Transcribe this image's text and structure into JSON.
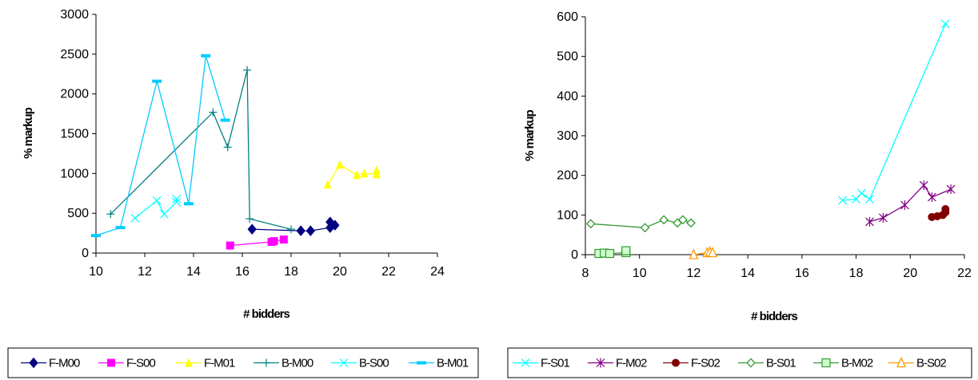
{
  "chart_data": [
    {
      "type": "line",
      "xlabel": "# bidders",
      "ylabel": "% markup",
      "xlim": [
        10,
        24
      ],
      "ylim": [
        0,
        3000
      ],
      "xticks": [
        10,
        12,
        14,
        16,
        18,
        20,
        22,
        24
      ],
      "yticks": [
        0,
        500,
        1000,
        1500,
        2000,
        2500,
        3000
      ],
      "grid": false,
      "legend_position": "bottom",
      "series": [
        {
          "name": "F-M00",
          "color": "#000080",
          "marker": "diamond",
          "points": [
            [
              16.4,
              300
            ],
            [
              18.4,
              280
            ],
            [
              18.8,
              280
            ],
            [
              19.6,
              320
            ],
            [
              19.6,
              390
            ],
            [
              19.8,
              350
            ]
          ]
        },
        {
          "name": "F-S00",
          "color": "#ff00ff",
          "marker": "square",
          "points": [
            [
              15.5,
              95
            ],
            [
              17.2,
              140
            ],
            [
              17.3,
              150
            ],
            [
              17.7,
              170
            ]
          ]
        },
        {
          "name": "F-M01",
          "color": "#ffff00",
          "marker": "triangle",
          "points": [
            [
              19.5,
              860
            ],
            [
              20.0,
              1110
            ],
            [
              20.7,
              980
            ],
            [
              21.0,
              1000
            ],
            [
              21.5,
              990
            ],
            [
              21.5,
              1040
            ]
          ]
        },
        {
          "name": "B-M00",
          "color": "#008080",
          "marker": "plus",
          "points": [
            [
              10.6,
              490
            ],
            [
              14.8,
              1770
            ],
            [
              15.4,
              1330
            ],
            [
              16.2,
              2300
            ],
            [
              16.3,
              430
            ],
            [
              18.0,
              300
            ]
          ]
        },
        {
          "name": "B-S00",
          "color": "#00ffff",
          "marker": "x",
          "points": [
            [
              11.6,
              440
            ],
            [
              12.5,
              660
            ],
            [
              12.8,
              490
            ],
            [
              13.3,
              640
            ],
            [
              13.3,
              680
            ]
          ]
        },
        {
          "name": "B-M01",
          "color": "#00ccff",
          "marker": "dash",
          "points": [
            [
              10.0,
              220
            ],
            [
              11.0,
              320
            ],
            [
              12.5,
              2160
            ],
            [
              13.8,
              620
            ],
            [
              14.5,
              2480
            ],
            [
              15.3,
              1670
            ]
          ]
        }
      ]
    },
    {
      "type": "line",
      "xlabel": "# bidders",
      "ylabel": "% markup",
      "xlim": [
        8,
        22
      ],
      "ylim": [
        0,
        600
      ],
      "xticks": [
        8,
        10,
        12,
        14,
        16,
        18,
        20,
        22
      ],
      "yticks": [
        0,
        100,
        200,
        300,
        400,
        500,
        600
      ],
      "grid": false,
      "legend_position": "bottom",
      "series": [
        {
          "name": "F-S01",
          "color": "#00ffff",
          "marker": "x",
          "points": [
            [
              17.5,
              137
            ],
            [
              18.0,
              140
            ],
            [
              18.2,
              155
            ],
            [
              18.5,
              140
            ],
            [
              21.3,
              582
            ]
          ]
        },
        {
          "name": "F-M02",
          "color": "#800080",
          "marker": "star",
          "points": [
            [
              18.5,
              83
            ],
            [
              19.0,
              93
            ],
            [
              19.8,
              125
            ],
            [
              20.5,
              175
            ],
            [
              20.8,
              145
            ],
            [
              21.5,
              165
            ]
          ]
        },
        {
          "name": "F-S02",
          "color": "#800000",
          "marker": "circle",
          "points": [
            [
              20.8,
              95
            ],
            [
              21.0,
              97
            ],
            [
              21.2,
              100
            ],
            [
              21.3,
              107
            ],
            [
              21.3,
              115
            ]
          ]
        },
        {
          "name": "B-S01",
          "color": "#339933",
          "marker": "diamond-open",
          "points": [
            [
              8.2,
              78
            ],
            [
              10.2,
              68
            ],
            [
              10.9,
              88
            ],
            [
              11.4,
              80
            ],
            [
              11.6,
              88
            ],
            [
              11.9,
              80
            ]
          ]
        },
        {
          "name": "B-M02",
          "color": "#339933",
          "marker": "square-open",
          "points": [
            [
              8.5,
              3
            ],
            [
              8.7,
              4
            ],
            [
              8.9,
              3
            ],
            [
              9.5,
              5
            ],
            [
              9.5,
              10
            ]
          ]
        },
        {
          "name": "B-S02",
          "color": "#ff9900",
          "marker": "triangle-open",
          "points": [
            [
              12.0,
              0
            ],
            [
              12.5,
              5
            ],
            [
              12.6,
              7
            ],
            [
              12.7,
              5
            ]
          ]
        }
      ]
    }
  ]
}
